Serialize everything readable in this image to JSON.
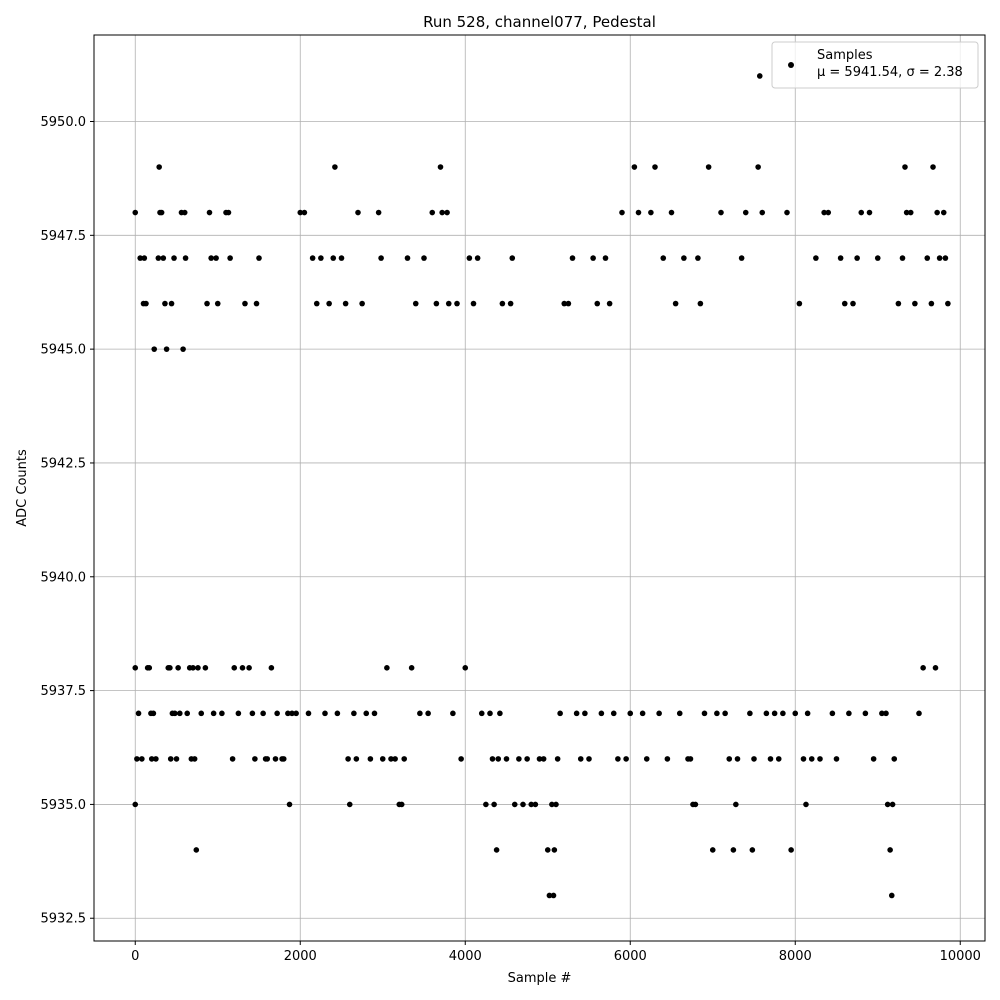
{
  "chart_data": {
    "type": "scatter",
    "title": "Run 528, channel077, Pedestal",
    "xlabel": "Sample #",
    "ylabel": "ADC Counts",
    "xlim": [
      -500,
      10300
    ],
    "ylim": [
      5932.0,
      5951.9
    ],
    "xticks": [
      0,
      2000,
      4000,
      6000,
      8000,
      10000
    ],
    "xtick_labels": [
      "0",
      "2000",
      "4000",
      "6000",
      "8000",
      "10000"
    ],
    "yticks": [
      5932.5,
      5935.0,
      5937.5,
      5940.0,
      5942.5,
      5945.0,
      5947.5,
      5950.0
    ],
    "ytick_labels": [
      "5932.5",
      "5935.0",
      "5937.5",
      "5940.0",
      "5942.5",
      "5945.0",
      "5947.5",
      "5950.0"
    ],
    "grid": true,
    "legend_position": "top-right",
    "marker_color": "#000000",
    "series": [
      {
        "name": "Samples",
        "legend_stats": "μ = 5941.54, σ = 2.38",
        "points": [
          [
            0,
            5935
          ],
          [
            0,
            5938
          ],
          [
            0,
            5948
          ],
          [
            20,
            5936
          ],
          [
            40,
            5937
          ],
          [
            60,
            5947
          ],
          [
            80,
            5936
          ],
          [
            100,
            5946
          ],
          [
            110,
            5947
          ],
          [
            130,
            5946
          ],
          [
            150,
            5938
          ],
          [
            170,
            5938
          ],
          [
            190,
            5937
          ],
          [
            200,
            5936
          ],
          [
            220,
            5937
          ],
          [
            230,
            5945
          ],
          [
            250,
            5936
          ],
          [
            280,
            5947
          ],
          [
            290,
            5949
          ],
          [
            300,
            5948
          ],
          [
            320,
            5948
          ],
          [
            340,
            5947
          ],
          [
            360,
            5946
          ],
          [
            380,
            5945
          ],
          [
            400,
            5938
          ],
          [
            420,
            5938
          ],
          [
            430,
            5936
          ],
          [
            440,
            5946
          ],
          [
            450,
            5937
          ],
          [
            470,
            5947
          ],
          [
            480,
            5937
          ],
          [
            500,
            5936
          ],
          [
            520,
            5938
          ],
          [
            540,
            5937
          ],
          [
            560,
            5948
          ],
          [
            580,
            5945
          ],
          [
            600,
            5948
          ],
          [
            610,
            5947
          ],
          [
            630,
            5937
          ],
          [
            660,
            5938
          ],
          [
            680,
            5936
          ],
          [
            700,
            5938
          ],
          [
            720,
            5936
          ],
          [
            740,
            5934
          ],
          [
            760,
            5938
          ],
          [
            800,
            5937
          ],
          [
            850,
            5938
          ],
          [
            870,
            5946
          ],
          [
            900,
            5948
          ],
          [
            920,
            5947
          ],
          [
            950,
            5937
          ],
          [
            980,
            5947
          ],
          [
            1000,
            5946
          ],
          [
            1050,
            5937
          ],
          [
            1100,
            5948
          ],
          [
            1130,
            5948
          ],
          [
            1150,
            5947
          ],
          [
            1180,
            5936
          ],
          [
            1200,
            5938
          ],
          [
            1250,
            5937
          ],
          [
            1300,
            5938
          ],
          [
            1330,
            5946
          ],
          [
            1380,
            5938
          ],
          [
            1420,
            5937
          ],
          [
            1450,
            5936
          ],
          [
            1470,
            5946
          ],
          [
            1500,
            5947
          ],
          [
            1550,
            5937
          ],
          [
            1580,
            5936
          ],
          [
            1600,
            5936
          ],
          [
            1650,
            5938
          ],
          [
            1700,
            5936
          ],
          [
            1720,
            5937
          ],
          [
            1780,
            5936
          ],
          [
            1800,
            5936
          ],
          [
            1850,
            5937
          ],
          [
            1870,
            5935
          ],
          [
            1900,
            5937
          ],
          [
            1950,
            5937
          ],
          [
            2000,
            5948
          ],
          [
            2050,
            5948
          ],
          [
            2100,
            5937
          ],
          [
            2150,
            5947
          ],
          [
            2200,
            5946
          ],
          [
            2250,
            5947
          ],
          [
            2300,
            5937
          ],
          [
            2350,
            5946
          ],
          [
            2400,
            5947
          ],
          [
            2420,
            5949
          ],
          [
            2450,
            5937
          ],
          [
            2500,
            5947
          ],
          [
            2550,
            5946
          ],
          [
            2580,
            5936
          ],
          [
            2600,
            5935
          ],
          [
            2650,
            5937
          ],
          [
            2680,
            5936
          ],
          [
            2700,
            5948
          ],
          [
            2750,
            5946
          ],
          [
            2800,
            5937
          ],
          [
            2850,
            5936
          ],
          [
            2900,
            5937
          ],
          [
            2950,
            5948
          ],
          [
            2980,
            5947
          ],
          [
            3000,
            5936
          ],
          [
            3050,
            5938
          ],
          [
            3100,
            5936
          ],
          [
            3150,
            5936
          ],
          [
            3200,
            5935
          ],
          [
            3230,
            5935
          ],
          [
            3260,
            5936
          ],
          [
            3300,
            5947
          ],
          [
            3350,
            5938
          ],
          [
            3400,
            5946
          ],
          [
            3450,
            5937
          ],
          [
            3500,
            5947
          ],
          [
            3550,
            5937
          ],
          [
            3600,
            5948
          ],
          [
            3650,
            5946
          ],
          [
            3700,
            5949
          ],
          [
            3720,
            5948
          ],
          [
            3780,
            5948
          ],
          [
            3800,
            5946
          ],
          [
            3850,
            5937
          ],
          [
            3900,
            5946
          ],
          [
            3950,
            5936
          ],
          [
            4000,
            5938
          ],
          [
            4050,
            5947
          ],
          [
            4100,
            5946
          ],
          [
            4150,
            5947
          ],
          [
            4200,
            5937
          ],
          [
            4250,
            5935
          ],
          [
            4300,
            5937
          ],
          [
            4330,
            5936
          ],
          [
            4350,
            5935
          ],
          [
            4380,
            5934
          ],
          [
            4400,
            5936
          ],
          [
            4420,
            5937
          ],
          [
            4450,
            5946
          ],
          [
            4500,
            5936
          ],
          [
            4550,
            5946
          ],
          [
            4570,
            5947
          ],
          [
            4600,
            5935
          ],
          [
            4650,
            5936
          ],
          [
            4700,
            5935
          ],
          [
            4750,
            5936
          ],
          [
            4800,
            5935
          ],
          [
            4850,
            5935
          ],
          [
            4900,
            5936
          ],
          [
            4950,
            5936
          ],
          [
            5000,
            5934
          ],
          [
            5020,
            5933
          ],
          [
            5050,
            5935
          ],
          [
            5070,
            5933
          ],
          [
            5080,
            5934
          ],
          [
            5100,
            5935
          ],
          [
            5120,
            5936
          ],
          [
            5150,
            5937
          ],
          [
            5200,
            5946
          ],
          [
            5250,
            5946
          ],
          [
            5300,
            5947
          ],
          [
            5350,
            5937
          ],
          [
            5400,
            5936
          ],
          [
            5450,
            5937
          ],
          [
            5500,
            5936
          ],
          [
            5550,
            5947
          ],
          [
            5600,
            5946
          ],
          [
            5650,
            5937
          ],
          [
            5700,
            5947
          ],
          [
            5750,
            5946
          ],
          [
            5800,
            5937
          ],
          [
            5850,
            5936
          ],
          [
            5900,
            5948
          ],
          [
            5950,
            5936
          ],
          [
            6000,
            5937
          ],
          [
            6050,
            5949
          ],
          [
            6100,
            5948
          ],
          [
            6150,
            5937
          ],
          [
            6200,
            5936
          ],
          [
            6250,
            5948
          ],
          [
            6300,
            5949
          ],
          [
            6350,
            5937
          ],
          [
            6400,
            5947
          ],
          [
            6450,
            5936
          ],
          [
            6500,
            5948
          ],
          [
            6550,
            5946
          ],
          [
            6600,
            5937
          ],
          [
            6650,
            5947
          ],
          [
            6700,
            5936
          ],
          [
            6730,
            5936
          ],
          [
            6760,
            5935
          ],
          [
            6790,
            5935
          ],
          [
            6820,
            5947
          ],
          [
            6850,
            5946
          ],
          [
            6900,
            5937
          ],
          [
            6950,
            5949
          ],
          [
            7000,
            5934
          ],
          [
            7050,
            5937
          ],
          [
            7100,
            5948
          ],
          [
            7150,
            5937
          ],
          [
            7200,
            5936
          ],
          [
            7250,
            5934
          ],
          [
            7280,
            5935
          ],
          [
            7300,
            5936
          ],
          [
            7350,
            5947
          ],
          [
            7400,
            5948
          ],
          [
            7450,
            5937
          ],
          [
            7480,
            5934
          ],
          [
            7500,
            5936
          ],
          [
            7550,
            5949
          ],
          [
            7570,
            5951
          ],
          [
            7600,
            5948
          ],
          [
            7650,
            5937
          ],
          [
            7700,
            5936
          ],
          [
            7750,
            5937
          ],
          [
            7800,
            5936
          ],
          [
            7850,
            5937
          ],
          [
            7900,
            5948
          ],
          [
            7950,
            5934
          ],
          [
            8000,
            5937
          ],
          [
            8050,
            5946
          ],
          [
            8100,
            5936
          ],
          [
            8130,
            5935
          ],
          [
            8150,
            5937
          ],
          [
            8200,
            5936
          ],
          [
            8250,
            5947
          ],
          [
            8300,
            5936
          ],
          [
            8350,
            5948
          ],
          [
            8400,
            5948
          ],
          [
            8450,
            5937
          ],
          [
            8500,
            5936
          ],
          [
            8550,
            5947
          ],
          [
            8600,
            5946
          ],
          [
            8650,
            5937
          ],
          [
            8700,
            5946
          ],
          [
            8750,
            5947
          ],
          [
            8800,
            5948
          ],
          [
            8850,
            5937
          ],
          [
            8900,
            5948
          ],
          [
            8950,
            5936
          ],
          [
            9000,
            5947
          ],
          [
            9050,
            5937
          ],
          [
            9100,
            5937
          ],
          [
            9120,
            5935
          ],
          [
            9150,
            5934
          ],
          [
            9170,
            5933
          ],
          [
            9180,
            5935
          ],
          [
            9200,
            5936
          ],
          [
            9250,
            5946
          ],
          [
            9300,
            5947
          ],
          [
            9330,
            5949
          ],
          [
            9350,
            5948
          ],
          [
            9400,
            5948
          ],
          [
            9450,
            5946
          ],
          [
            9500,
            5937
          ],
          [
            9550,
            5938
          ],
          [
            9600,
            5947
          ],
          [
            9650,
            5946
          ],
          [
            9670,
            5949
          ],
          [
            9700,
            5938
          ],
          [
            9720,
            5948
          ],
          [
            9750,
            5947
          ],
          [
            9800,
            5948
          ],
          [
            9820,
            5947
          ],
          [
            9850,
            5946
          ]
        ]
      }
    ]
  }
}
